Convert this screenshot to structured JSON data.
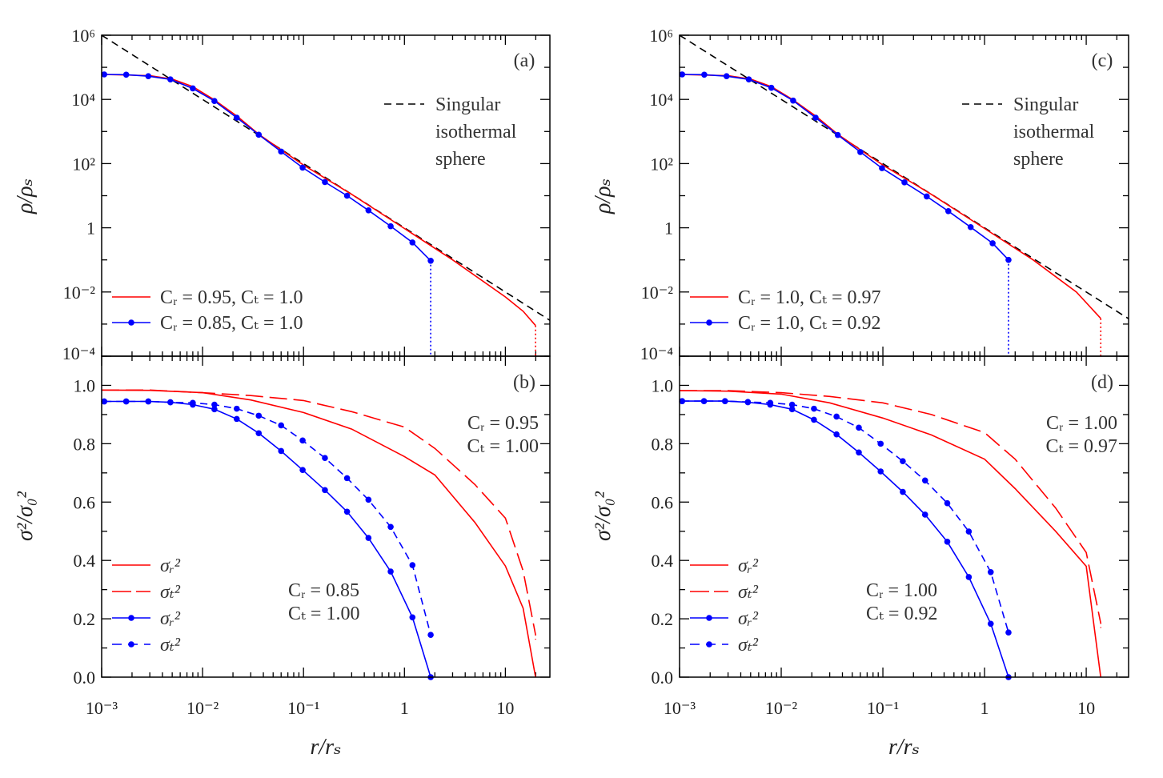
{
  "chart_data": [
    {
      "panel": "(a)",
      "type": "line",
      "xscale": "log",
      "yscale": "log",
      "xlim": [
        0.001,
        27.6
      ],
      "ylim": [
        0.0001,
        1000000
      ],
      "ylabel": "ρ/ρₛ",
      "xlabel": "",
      "yticks": [
        {
          "v": 1000000.0,
          "t": "10⁶"
        },
        {
          "v": 10000.0,
          "t": "10⁴"
        },
        {
          "v": 100.0,
          "t": "10²"
        },
        {
          "v": 1,
          "t": "1"
        },
        {
          "v": 0.01,
          "t": "10⁻²"
        },
        {
          "v": 0.0001,
          "t": "10⁻⁴"
        }
      ],
      "xticks": [],
      "annotations": [],
      "ref_legend": [
        "Singular",
        "isothermal",
        "sphere"
      ],
      "series": [
        {
          "name": "Singular isothermal sphere",
          "color": "#000000",
          "style": "dashed",
          "markers": false,
          "x": [
            0.001,
            27.6
          ],
          "y": [
            1000000,
            0.00131
          ]
        },
        {
          "name": "Cᵣ = 0.95, Cₜ = 1.0",
          "color": "#ff0000",
          "style": "solid",
          "markers": false,
          "legend": true,
          "x": [
            0.001,
            0.003,
            0.005,
            0.008,
            0.013,
            0.022,
            0.036,
            0.06,
            0.1,
            0.3,
            1,
            3,
            10,
            15,
            19.9
          ],
          "y": [
            60000,
            55000,
            43000,
            25000,
            9800,
            3000,
            820,
            270,
            90,
            11,
            0.95,
            0.1,
            0.007,
            0.0025,
            0.0009
          ],
          "cutoff": true
        },
        {
          "name": "Cᵣ = 0.85, Cₜ = 1.0",
          "color": "#0000ff",
          "style": "solid",
          "markers": true,
          "legend": true,
          "x": [
            0.00106,
            0.00175,
            0.0029,
            0.0048,
            0.008,
            0.0131,
            0.0218,
            0.036,
            0.06,
            0.098,
            0.163,
            0.27,
            0.44,
            0.73,
            1.2,
            1.82
          ],
          "y": [
            60000,
            59000,
            53000,
            42000,
            22000,
            8900,
            2700,
            794,
            237,
            75,
            26.6,
            10,
            3.5,
            1.12,
            0.35,
            0.094
          ],
          "cutoff": true
        }
      ]
    },
    {
      "panel": "(b)",
      "type": "line",
      "xscale": "log",
      "yscale": "linear",
      "xlim": [
        0.001,
        27.6
      ],
      "ylim": [
        0,
        1.1
      ],
      "ylabel": "σ²/σ₀²",
      "xlabel": "r/rₛ",
      "yticks": [
        {
          "v": 0,
          "t": "0.0"
        },
        {
          "v": 0.2,
          "t": "0.2"
        },
        {
          "v": 0.4,
          "t": "0.4"
        },
        {
          "v": 0.6,
          "t": "0.6"
        },
        {
          "v": 0.8,
          "t": "0.8"
        },
        {
          "v": 1.0,
          "t": "1.0"
        }
      ],
      "xticks": [
        {
          "v": 0.001,
          "t": "10⁻³"
        },
        {
          "v": 0.01,
          "t": "10⁻²"
        },
        {
          "v": 0.1,
          "t": "10⁻¹"
        },
        {
          "v": 1,
          "t": "1"
        },
        {
          "v": 10,
          "t": "10"
        }
      ],
      "annotations": [
        [
          "Cᵣ = 0.95",
          "Cₜ = 1.00"
        ],
        [
          "Cᵣ = 0.85",
          "Cₜ = 1.00"
        ]
      ],
      "series": [
        {
          "name": "σᵣ²",
          "color": "#ff0000",
          "style": "solid",
          "markers": false,
          "legend": true,
          "x": [
            0.001,
            0.003,
            0.01,
            0.03,
            0.1,
            0.3,
            1,
            2,
            5,
            10,
            15,
            19.9
          ],
          "y": [
            0.984,
            0.983,
            0.975,
            0.95,
            0.907,
            0.85,
            0.756,
            0.693,
            0.53,
            0.381,
            0.236,
            0.0
          ]
        },
        {
          "name": "σₜ²",
          "color": "#ff0000",
          "style": "longdash",
          "markers": false,
          "legend": true,
          "x": [
            0.001,
            0.003,
            0.01,
            0.03,
            0.1,
            0.3,
            1,
            2,
            5,
            10,
            15,
            19.9
          ],
          "y": [
            0.984,
            0.984,
            0.975,
            0.965,
            0.948,
            0.91,
            0.857,
            0.784,
            0.66,
            0.545,
            0.364,
            0.145
          ]
        },
        {
          "name": "σᵣ²",
          "color": "#0000ff",
          "style": "solid",
          "markers": true,
          "legend": true,
          "x": [
            0.00106,
            0.00175,
            0.0029,
            0.0048,
            0.008,
            0.0131,
            0.0218,
            0.036,
            0.06,
            0.098,
            0.163,
            0.27,
            0.44,
            0.73,
            1.2,
            1.82
          ],
          "y": [
            0.945,
            0.945,
            0.945,
            0.942,
            0.934,
            0.918,
            0.885,
            0.836,
            0.775,
            0.71,
            0.641,
            0.567,
            0.477,
            0.362,
            0.205,
            0.0
          ]
        },
        {
          "name": "σₜ²",
          "color": "#0000ff",
          "style": "dashed",
          "markers": true,
          "legend": true,
          "x": [
            0.00106,
            0.00175,
            0.0029,
            0.0048,
            0.008,
            0.0131,
            0.0218,
            0.036,
            0.06,
            0.098,
            0.163,
            0.27,
            0.44,
            0.73,
            1.2,
            1.82
          ],
          "y": [
            0.945,
            0.945,
            0.945,
            0.942,
            0.94,
            0.934,
            0.92,
            0.896,
            0.863,
            0.811,
            0.751,
            0.682,
            0.608,
            0.515,
            0.384,
            0.145
          ]
        }
      ]
    },
    {
      "panel": "(c)",
      "type": "line",
      "xscale": "log",
      "yscale": "log",
      "xlim": [
        0.001,
        26.1
      ],
      "ylim": [
        0.0001,
        1000000
      ],
      "ylabel": "ρ/ρₛ",
      "xlabel": "",
      "yticks": [
        {
          "v": 1000000.0,
          "t": "10⁶"
        },
        {
          "v": 10000.0,
          "t": "10⁴"
        },
        {
          "v": 100.0,
          "t": "10²"
        },
        {
          "v": 1,
          "t": "1"
        },
        {
          "v": 0.01,
          "t": "10⁻²"
        },
        {
          "v": 0.0001,
          "t": "10⁻⁴"
        }
      ],
      "xticks": [],
      "annotations": [],
      "ref_legend": [
        "Singular",
        "isothermal",
        "sphere"
      ],
      "series": [
        {
          "name": "Singular isothermal sphere",
          "color": "#000000",
          "style": "dashed",
          "markers": false,
          "x": [
            0.001,
            26.1
          ],
          "y": [
            1000000,
            0.00147
          ]
        },
        {
          "name": "Cᵣ = 1.0, Cₜ = 0.97",
          "color": "#ff0000",
          "style": "solid",
          "markers": false,
          "legend": true,
          "x": [
            0.001,
            0.003,
            0.005,
            0.008,
            0.013,
            0.022,
            0.036,
            0.06,
            0.1,
            0.3,
            1,
            3,
            8,
            13.9
          ],
          "y": [
            60000,
            55000,
            43000,
            25000,
            9800,
            3000,
            820,
            270,
            90,
            11,
            0.95,
            0.1,
            0.01,
            0.0015
          ],
          "cutoff": true
        },
        {
          "name": "Cᵣ = 1.0, Cₜ = 0.92",
          "color": "#0000ff",
          "style": "solid",
          "markers": true,
          "legend": true,
          "x": [
            0.00106,
            0.00175,
            0.0029,
            0.0048,
            0.008,
            0.0131,
            0.0218,
            0.036,
            0.06,
            0.098,
            0.163,
            0.27,
            0.44,
            0.73,
            1.2,
            1.72
          ],
          "y": [
            60000,
            59000,
            53000,
            42000,
            23000,
            9200,
            2700,
            780,
            230,
            72,
            26,
            9.5,
            3.3,
            1.05,
            0.33,
            0.1
          ],
          "cutoff": true
        }
      ]
    },
    {
      "panel": "(d)",
      "type": "line",
      "xscale": "log",
      "yscale": "linear",
      "xlim": [
        0.001,
        26.1
      ],
      "ylim": [
        0,
        1.1
      ],
      "ylabel": "σ²/σ₀²",
      "xlabel": "r/rₛ",
      "yticks": [
        {
          "v": 0,
          "t": "0.0"
        },
        {
          "v": 0.2,
          "t": "0.2"
        },
        {
          "v": 0.4,
          "t": "0.4"
        },
        {
          "v": 0.6,
          "t": "0.6"
        },
        {
          "v": 0.8,
          "t": "0.8"
        },
        {
          "v": 1.0,
          "t": "1.0"
        }
      ],
      "xticks": [
        {
          "v": 0.001,
          "t": "10⁻³"
        },
        {
          "v": 0.01,
          "t": "10⁻²"
        },
        {
          "v": 0.1,
          "t": "10⁻¹"
        },
        {
          "v": 1,
          "t": "1"
        },
        {
          "v": 10,
          "t": "10"
        }
      ],
      "annotations": [
        [
          "Cᵣ = 1.00",
          "Cₜ = 0.97"
        ],
        [
          "Cᵣ = 1.00",
          "Cₜ = 0.92"
        ]
      ],
      "series": [
        {
          "name": "σᵣ²",
          "color": "#ff0000",
          "style": "solid",
          "markers": false,
          "legend": true,
          "x": [
            0.001,
            0.003,
            0.01,
            0.03,
            0.1,
            0.3,
            1,
            2,
            5,
            10,
            13.9
          ],
          "y": [
            0.982,
            0.98,
            0.97,
            0.94,
            0.888,
            0.83,
            0.747,
            0.646,
            0.5,
            0.38,
            0.0
          ]
        },
        {
          "name": "σₜ²",
          "color": "#ff0000",
          "style": "longdash",
          "markers": false,
          "legend": true,
          "x": [
            0.001,
            0.003,
            0.01,
            0.03,
            0.1,
            0.3,
            1,
            2,
            5,
            10,
            13.9
          ],
          "y": [
            0.982,
            0.982,
            0.975,
            0.962,
            0.94,
            0.9,
            0.838,
            0.747,
            0.58,
            0.427,
            0.185
          ]
        },
        {
          "name": "σᵣ²",
          "color": "#0000ff",
          "style": "solid",
          "markers": true,
          "legend": true,
          "x": [
            0.00106,
            0.00174,
            0.0028,
            0.0047,
            0.0078,
            0.0128,
            0.021,
            0.035,
            0.058,
            0.095,
            0.157,
            0.26,
            0.43,
            0.7,
            1.15,
            1.72
          ],
          "y": [
            0.946,
            0.946,
            0.946,
            0.942,
            0.934,
            0.918,
            0.882,
            0.832,
            0.77,
            0.705,
            0.635,
            0.557,
            0.464,
            0.343,
            0.183,
            0.0
          ]
        },
        {
          "name": "σₜ²",
          "color": "#0000ff",
          "style": "dashed",
          "markers": true,
          "legend": true,
          "x": [
            0.00106,
            0.00174,
            0.0028,
            0.0047,
            0.0078,
            0.0128,
            0.021,
            0.035,
            0.058,
            0.095,
            0.157,
            0.26,
            0.43,
            0.7,
            1.15,
            1.72
          ],
          "y": [
            0.946,
            0.946,
            0.946,
            0.943,
            0.94,
            0.934,
            0.92,
            0.893,
            0.855,
            0.8,
            0.74,
            0.674,
            0.596,
            0.499,
            0.36,
            0.153
          ]
        }
      ]
    }
  ]
}
